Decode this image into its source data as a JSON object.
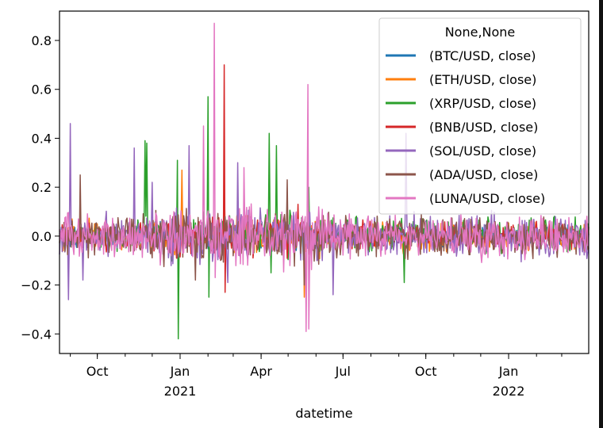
{
  "chart_data": {
    "type": "line",
    "xlabel": "datetime",
    "ylabel": "",
    "x_range": [
      "2020-08-20",
      "2022-03-31"
    ],
    "ylim": [
      -0.48,
      0.92
    ],
    "yticks": [
      -0.4,
      -0.2,
      0.0,
      0.2,
      0.4,
      0.6,
      0.8
    ],
    "ytick_labels": [
      "−0.4",
      "−0.2",
      "0.0",
      "0.2",
      "0.4",
      "0.6",
      "0.8"
    ],
    "xticks": [
      {
        "date": "2020-10-01",
        "label": "Oct",
        "sublabel": ""
      },
      {
        "date": "2021-01-01",
        "label": "Jan",
        "sublabel": "2021"
      },
      {
        "date": "2021-04-01",
        "label": "Apr",
        "sublabel": ""
      },
      {
        "date": "2021-07-01",
        "label": "Jul",
        "sublabel": ""
      },
      {
        "date": "2021-10-01",
        "label": "Oct",
        "sublabel": ""
      },
      {
        "date": "2022-01-01",
        "label": "Jan",
        "sublabel": "2022"
      }
    ],
    "grid": false,
    "legend": {
      "title": "None,None",
      "position": "upper-right",
      "entries": [
        {
          "label": "(BTC/USD, close)",
          "color": "#1f77b4"
        },
        {
          "label": "(ETH/USD, close)",
          "color": "#ff7f0e"
        },
        {
          "label": "(XRP/USD, close)",
          "color": "#2ca02c"
        },
        {
          "label": "(BNB/USD, close)",
          "color": "#d62728"
        },
        {
          "label": "(SOL/USD, close)",
          "color": "#9467bd"
        },
        {
          "label": "(ADA/USD, close)",
          "color": "#8c564b"
        },
        {
          "label": "(LUNA/USD, close)",
          "color": "#e377c2"
        }
      ]
    },
    "series": [
      {
        "name": "(BTC/USD, close)",
        "color": "#1f77b4",
        "amplitude": 0.035,
        "seed": 11,
        "spikes": []
      },
      {
        "name": "(ETH/USD, close)",
        "color": "#ff7f0e",
        "amplitude": 0.05,
        "seed": 23,
        "spikes": [
          {
            "x": "2021-01-03",
            "y": 0.27
          },
          {
            "x": "2021-02-19",
            "y": 0.22
          },
          {
            "x": "2021-05-19",
            "y": -0.25
          }
        ]
      },
      {
        "name": "(XRP/USD, close)",
        "color": "#2ca02c",
        "amplitude": 0.06,
        "seed": 37,
        "spikes": [
          {
            "x": "2020-11-23",
            "y": 0.39
          },
          {
            "x": "2020-11-25",
            "y": 0.38
          },
          {
            "x": "2020-12-29",
            "y": 0.31
          },
          {
            "x": "2020-12-30",
            "y": -0.42
          },
          {
            "x": "2021-02-01",
            "y": 0.57
          },
          {
            "x": "2021-02-02",
            "y": -0.25
          },
          {
            "x": "2021-04-10",
            "y": 0.42
          },
          {
            "x": "2021-04-12",
            "y": -0.15
          },
          {
            "x": "2021-04-18",
            "y": 0.37
          },
          {
            "x": "2021-05-24",
            "y": 0.2
          },
          {
            "x": "2021-09-07",
            "y": -0.19
          }
        ]
      },
      {
        "name": "(BNB/USD, close)",
        "color": "#d62728",
        "amplitude": 0.05,
        "seed": 41,
        "spikes": [
          {
            "x": "2021-02-19",
            "y": 0.7
          },
          {
            "x": "2021-02-20",
            "y": -0.23
          },
          {
            "x": "2021-05-12",
            "y": 0.13
          }
        ]
      },
      {
        "name": "(SOL/USD, close)",
        "color": "#9467bd",
        "amplitude": 0.075,
        "seed": 53,
        "spikes": [
          {
            "x": "2020-08-30",
            "y": -0.26
          },
          {
            "x": "2020-09-01",
            "y": 0.46
          },
          {
            "x": "2020-09-15",
            "y": -0.18
          },
          {
            "x": "2020-11-11",
            "y": 0.36
          },
          {
            "x": "2020-12-01",
            "y": 0.22
          },
          {
            "x": "2021-01-11",
            "y": 0.37
          },
          {
            "x": "2021-02-23",
            "y": -0.19
          },
          {
            "x": "2021-03-06",
            "y": 0.3
          },
          {
            "x": "2021-06-20",
            "y": -0.24
          },
          {
            "x": "2021-09-09",
            "y": 0.42
          }
        ]
      },
      {
        "name": "(ADA/USD, close)",
        "color": "#8c564b",
        "amplitude": 0.07,
        "seed": 67,
        "spikes": [
          {
            "x": "2020-09-12",
            "y": 0.25
          },
          {
            "x": "2021-01-18",
            "y": -0.18
          },
          {
            "x": "2021-04-30",
            "y": 0.23
          },
          {
            "x": "2021-05-19",
            "y": -0.2
          }
        ]
      },
      {
        "name": "(LUNA/USD, close)",
        "color": "#e377c2",
        "amplitude": 0.075,
        "seed": 79,
        "spikes": [
          {
            "x": "2021-01-27",
            "y": 0.45
          },
          {
            "x": "2021-02-08",
            "y": 0.87
          },
          {
            "x": "2021-02-09",
            "y": -0.17
          },
          {
            "x": "2021-05-21",
            "y": -0.39
          },
          {
            "x": "2021-05-23",
            "y": 0.62
          },
          {
            "x": "2021-05-24",
            "y": -0.38
          },
          {
            "x": "2021-03-13",
            "y": 0.28
          }
        ]
      }
    ]
  }
}
